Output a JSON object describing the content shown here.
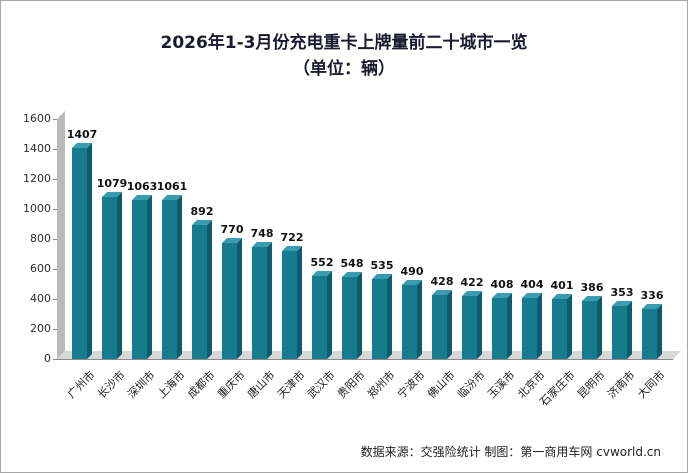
{
  "title": {
    "line1": "2026年1-3月份充电重卡上牌量前二十城市一览",
    "line2": "（单位：辆）"
  },
  "footer": {
    "text": "数据来源：交强险统计 制图：第一商用车网 cvworld.cn"
  },
  "colors": {
    "bar_front": "#177b90",
    "bar_side": "#0e5b6d",
    "bar_top": "#3a9cb0",
    "wall": "#b9b9b9",
    "floor": "#d7d7d7",
    "axis": "#8a8a8a",
    "title_text": "#1b1b2f"
  },
  "chart_data": {
    "type": "bar",
    "title": "2026年1-3月份充电重卡上牌量前二十城市一览（单位：辆）",
    "categories": [
      "广州市",
      "长沙市",
      "深圳市",
      "上海市",
      "成都市",
      "重庆市",
      "唐山市",
      "天津市",
      "武汉市",
      "贵阳市",
      "郑州市",
      "宁波市",
      "佛山市",
      "临汾市",
      "玉溪市",
      "北京市",
      "石家庄市",
      "昆明市",
      "济南市",
      "大同市"
    ],
    "values": [
      1407,
      1079,
      1063,
      1061,
      892,
      770,
      748,
      722,
      552,
      548,
      535,
      490,
      428,
      422,
      408,
      404,
      401,
      386,
      353,
      336
    ],
    "xlabel": "",
    "ylabel": "",
    "ylim": [
      0,
      1600
    ],
    "ytick_step": 200,
    "yticks": [
      0,
      200,
      400,
      600,
      800,
      1000,
      1200,
      1400,
      1600
    ],
    "grid": false,
    "legend": "none",
    "style": "3d-extruded-bars"
  }
}
